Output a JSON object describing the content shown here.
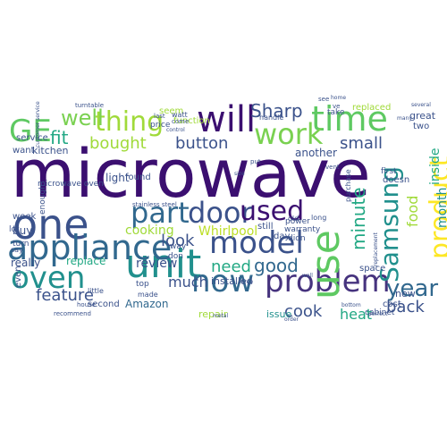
{
  "cloud": {
    "words": [
      {
        "text": "microwave",
        "color": "#3b0f70"
      },
      {
        "text": "one",
        "color": "#3b528b"
      },
      {
        "text": "unit",
        "color": "#21908d"
      },
      {
        "text": "appliance",
        "color": "#31688e"
      },
      {
        "text": "problem",
        "color": "#46337e"
      },
      {
        "text": "now",
        "color": "#31688e"
      },
      {
        "text": "oven",
        "color": "#21908d"
      },
      {
        "text": "use",
        "color": "#5ec962"
      },
      {
        "text": "model",
        "color": "#3b528b"
      },
      {
        "text": "time",
        "color": "#5ec962"
      },
      {
        "text": "will",
        "color": "#3b0f70"
      },
      {
        "text": "work",
        "color": "#7ad151"
      },
      {
        "text": "part",
        "color": "#31688e"
      },
      {
        "text": "door",
        "color": "#3b528b"
      },
      {
        "text": "used",
        "color": "#3b0f70"
      },
      {
        "text": "thing",
        "color": "#a0da39"
      },
      {
        "text": "product",
        "color": "#fde725"
      },
      {
        "text": "Samsung",
        "color": "#21908d"
      },
      {
        "text": "GE",
        "color": "#5ec962"
      },
      {
        "text": "year",
        "color": "#31688e"
      },
      {
        "text": "fit",
        "color": "#22a884"
      },
      {
        "text": "well",
        "color": "#7ad151"
      },
      {
        "text": "Sharp",
        "color": "#3b528b"
      },
      {
        "text": "minute",
        "color": "#22a884"
      },
      {
        "text": "good",
        "color": "#31688e"
      },
      {
        "text": "need",
        "color": "#22a884"
      },
      {
        "text": "look",
        "color": "#3b528b"
      },
      {
        "text": "cook",
        "color": "#3b528b"
      },
      {
        "text": "back",
        "color": "#3b528b"
      },
      {
        "text": "heat",
        "color": "#22a884"
      },
      {
        "text": "button",
        "color": "#3b528b"
      },
      {
        "text": "bought",
        "color": "#a0da39"
      },
      {
        "text": "review",
        "color": "#3b528b"
      },
      {
        "text": "feature",
        "color": "#3b528b"
      },
      {
        "text": "much",
        "color": "#3b528b"
      },
      {
        "text": "small",
        "color": "#3b528b"
      },
      {
        "text": "month",
        "color": "#21908d"
      },
      {
        "text": "inside",
        "color": "#22a884"
      },
      {
        "text": "food",
        "color": "#a0da39"
      },
      {
        "text": "cooking",
        "color": "#a0da39"
      },
      {
        "text": "Whirlpool",
        "color": "#bddf26"
      },
      {
        "text": "Amazon",
        "color": "#31688e"
      },
      {
        "text": "replace",
        "color": "#22a884"
      },
      {
        "text": "really",
        "color": "#3b528b"
      },
      {
        "text": "installed",
        "color": "#3b528b"
      },
      {
        "text": "repair",
        "color": "#a0da39"
      },
      {
        "text": "issue",
        "color": "#21908d"
      },
      {
        "text": "great",
        "color": "#3b528b"
      },
      {
        "text": "replaced",
        "color": "#a0da39"
      },
      {
        "text": "another",
        "color": "#3b528b"
      },
      {
        "text": "light",
        "color": "#3b528b"
      },
      {
        "text": "kitchen",
        "color": "#3b528b"
      },
      {
        "text": "service",
        "color": "#3b528b"
      },
      {
        "text": "seem",
        "color": "#a0da39"
      },
      {
        "text": "function",
        "color": "#a0da39"
      },
      {
        "text": "price",
        "color": "#3b528b"
      },
      {
        "text": "take",
        "color": "#3b528b"
      },
      {
        "text": "two",
        "color": "#3b528b"
      },
      {
        "text": "still",
        "color": "#3b528b"
      },
      {
        "text": "day",
        "color": "#3b528b"
      },
      {
        "text": "way",
        "color": "#3b528b"
      },
      {
        "text": "top",
        "color": "#3b528b"
      },
      {
        "text": "cost",
        "color": "#3b528b"
      },
      {
        "text": "new",
        "color": "#3b528b"
      },
      {
        "text": "space",
        "color": "#3b528b"
      },
      {
        "text": "warranty",
        "color": "#3b528b"
      },
      {
        "text": "power",
        "color": "#3b528b"
      },
      {
        "text": "first",
        "color": "#3b528b"
      },
      {
        "text": "doesn",
        "color": "#3b528b"
      },
      {
        "text": "week",
        "color": "#3b528b"
      },
      {
        "text": "buy",
        "color": "#3b528b"
      },
      {
        "text": "even",
        "color": "#3b528b"
      },
      {
        "text": "second",
        "color": "#3b528b"
      },
      {
        "text": "found",
        "color": "#3b528b"
      },
      {
        "text": "want",
        "color": "#3b528b"
      },
      {
        "text": "turn",
        "color": "#3b528b"
      },
      {
        "text": "enough",
        "color": "#3b528b"
      },
      {
        "text": "microwave oven",
        "color": "#3b528b"
      },
      {
        "text": "little",
        "color": "#3b528b"
      },
      {
        "text": "made",
        "color": "#3b528b"
      },
      {
        "text": "don",
        "color": "#3b528b"
      },
      {
        "text": "purchase",
        "color": "#3b528b"
      },
      {
        "text": "lot",
        "color": "#3b528b"
      },
      {
        "text": "watt",
        "color": "#3b528b"
      },
      {
        "text": "handle",
        "color": "#3b528b"
      },
      {
        "text": "cabinet",
        "color": "#3b528b"
      },
      {
        "text": "old",
        "color": "#3b528b"
      },
      {
        "text": "long",
        "color": "#3b528b"
      },
      {
        "text": "didn",
        "color": "#3b528b"
      },
      {
        "text": "say",
        "color": "#3b528b"
      },
      {
        "text": "house",
        "color": "#3b528b"
      },
      {
        "text": "recommend",
        "color": "#3b528b"
      },
      {
        "text": "stainless steel",
        "color": "#3b528b"
      },
      {
        "text": "come",
        "color": "#3b528b"
      },
      {
        "text": "turntable",
        "color": "#3b528b"
      },
      {
        "text": "control",
        "color": "#3b528b"
      },
      {
        "text": "put",
        "color": "#3b528b"
      },
      {
        "text": "large",
        "color": "#3b528b"
      },
      {
        "text": "vent",
        "color": "#3b528b"
      },
      {
        "text": "order",
        "color": "#3b528b"
      },
      {
        "text": "bottom",
        "color": "#3b528b"
      },
      {
        "text": "perfect",
        "color": "#3b528b"
      },
      {
        "text": "several",
        "color": "#3b528b"
      },
      {
        "text": "see",
        "color": "#3b528b"
      },
      {
        "text": "many",
        "color": "#3b528b"
      },
      {
        "text": "size",
        "color": "#3b528b"
      },
      {
        "text": "wall",
        "color": "#3b528b"
      },
      {
        "text": "last",
        "color": "#3b528b"
      },
      {
        "text": "metal",
        "color": "#3b528b"
      },
      {
        "text": "replacement",
        "color": "#3b528b"
      },
      {
        "text": "customer service",
        "color": "#3b528b"
      },
      {
        "text": "home",
        "color": "#3b528b"
      },
      {
        "text": "ve",
        "color": "#3b528b"
      }
    ]
  }
}
